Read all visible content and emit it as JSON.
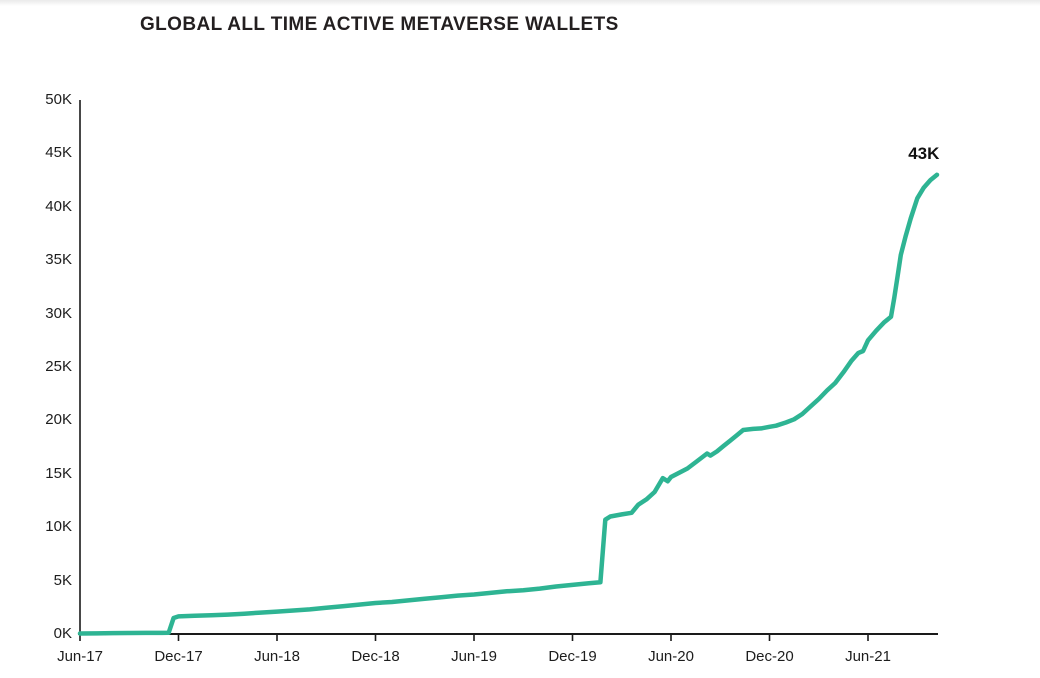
{
  "chart_data": {
    "type": "line",
    "title": "GLOBAL ALL TIME ACTIVE METAVERSE WALLETS",
    "y_unit": "K (thousands of wallets)",
    "x_unit": "months since Jun-2017",
    "ylim_k": [
      0,
      50
    ],
    "xlim_months": [
      0,
      52.3
    ],
    "grid": false,
    "legend": "none",
    "line_color": "#2eb493",
    "axis_color": "#1a1a1a",
    "annotation": {
      "text": "43K",
      "m": 51.4,
      "v": 44.9
    },
    "x_ticks": [
      {
        "m": 0,
        "label": "Jun-17"
      },
      {
        "m": 6,
        "label": "Dec-17"
      },
      {
        "m": 12,
        "label": "Jun-18"
      },
      {
        "m": 18,
        "label": "Dec-18"
      },
      {
        "m": 24,
        "label": "Jun-19"
      },
      {
        "m": 30,
        "label": "Dec-19"
      },
      {
        "m": 36,
        "label": "Jun-20"
      },
      {
        "m": 42,
        "label": "Dec-20"
      },
      {
        "m": 48,
        "label": "Jun-21"
      }
    ],
    "y_ticks": [
      {
        "value": 0,
        "label": "0K"
      },
      {
        "value": 5,
        "label": "5K"
      },
      {
        "value": 10,
        "label": "10K"
      },
      {
        "value": 15,
        "label": "15K"
      },
      {
        "value": 20,
        "label": "20K"
      },
      {
        "value": 25,
        "label": "25K"
      },
      {
        "value": 30,
        "label": "30K"
      },
      {
        "value": 35,
        "label": "35K"
      },
      {
        "value": 40,
        "label": "40K"
      },
      {
        "value": 45,
        "label": "45K"
      },
      {
        "value": 50,
        "label": "50K"
      }
    ],
    "series": [
      {
        "name": "Global all time active metaverse wallets",
        "points": [
          [
            0,
            0.05
          ],
          [
            1,
            0.06
          ],
          [
            2,
            0.08
          ],
          [
            3,
            0.09
          ],
          [
            4,
            0.1
          ],
          [
            5,
            0.1
          ],
          [
            5.4,
            0.12
          ],
          [
            5.7,
            1.5
          ],
          [
            6,
            1.65
          ],
          [
            7,
            1.7
          ],
          [
            8,
            1.75
          ],
          [
            9,
            1.82
          ],
          [
            10,
            1.9
          ],
          [
            11,
            2.0
          ],
          [
            12,
            2.1
          ],
          [
            13,
            2.2
          ],
          [
            14,
            2.3
          ],
          [
            15,
            2.45
          ],
          [
            16,
            2.6
          ],
          [
            17,
            2.75
          ],
          [
            18,
            2.9
          ],
          [
            19,
            3.0
          ],
          [
            20,
            3.15
          ],
          [
            21,
            3.3
          ],
          [
            22,
            3.45
          ],
          [
            23,
            3.6
          ],
          [
            24,
            3.7
          ],
          [
            25,
            3.85
          ],
          [
            26,
            4.0
          ],
          [
            27,
            4.1
          ],
          [
            28,
            4.25
          ],
          [
            29,
            4.45
          ],
          [
            30,
            4.6
          ],
          [
            31,
            4.75
          ],
          [
            31.7,
            4.85
          ],
          [
            32,
            10.7
          ],
          [
            32.3,
            11.0
          ],
          [
            33,
            11.2
          ],
          [
            33.6,
            11.35
          ],
          [
            34,
            12.1
          ],
          [
            34.5,
            12.6
          ],
          [
            35,
            13.3
          ],
          [
            35.5,
            14.6
          ],
          [
            35.8,
            14.3
          ],
          [
            36,
            14.7
          ],
          [
            36.5,
            15.1
          ],
          [
            37,
            15.5
          ],
          [
            37.6,
            16.2
          ],
          [
            38.2,
            16.9
          ],
          [
            38.4,
            16.7
          ],
          [
            38.8,
            17.1
          ],
          [
            39.2,
            17.6
          ],
          [
            39.6,
            18.1
          ],
          [
            40,
            18.6
          ],
          [
            40.4,
            19.1
          ],
          [
            41,
            19.2
          ],
          [
            41.5,
            19.25
          ],
          [
            42,
            19.4
          ],
          [
            42.4,
            19.5
          ],
          [
            43,
            19.8
          ],
          [
            43.5,
            20.1
          ],
          [
            44,
            20.6
          ],
          [
            44.5,
            21.3
          ],
          [
            45,
            22.0
          ],
          [
            45.5,
            22.8
          ],
          [
            46,
            23.5
          ],
          [
            46.5,
            24.5
          ],
          [
            47,
            25.6
          ],
          [
            47.4,
            26.3
          ],
          [
            47.7,
            26.5
          ],
          [
            48,
            27.5
          ],
          [
            48.5,
            28.4
          ],
          [
            49,
            29.2
          ],
          [
            49.4,
            29.7
          ],
          [
            49.6,
            31.5
          ],
          [
            49.8,
            33.5
          ],
          [
            50,
            35.5
          ],
          [
            50.3,
            37.3
          ],
          [
            50.6,
            38.9
          ],
          [
            51,
            40.8
          ],
          [
            51.4,
            41.8
          ],
          [
            51.8,
            42.5
          ],
          [
            52.2,
            43.0
          ]
        ]
      }
    ]
  }
}
